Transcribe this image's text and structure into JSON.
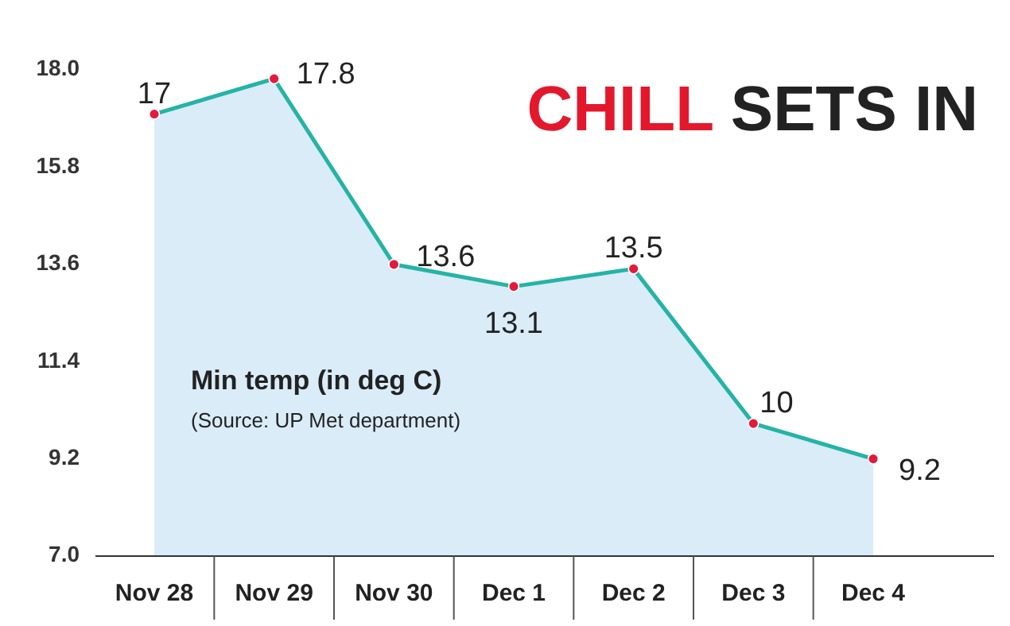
{
  "chart_data": {
    "type": "area",
    "title": "CHILL SETS IN",
    "categories": [
      "Nov 28",
      "Nov 29",
      "Nov 30",
      "Dec 1",
      "Dec 2",
      "Dec 3",
      "Dec 4"
    ],
    "series": [
      {
        "color": "#26b3a6",
        "values": [
          17,
          17.8,
          13.6,
          13.1,
          13.5,
          10,
          9.2
        ]
      }
    ],
    "ylim": [
      7,
      18
    ],
    "yticks": [
      {
        "value": 7,
        "label": "7.0"
      },
      9.2,
      11.4,
      13.6,
      15.8,
      {
        "value": 18,
        "label": "18.0"
      }
    ],
    "annotations": [
      "Min temp (in deg C)",
      "(Source: UP Met department)"
    ],
    "data_labels": true,
    "marker": "circle",
    "grid": false
  }
}
